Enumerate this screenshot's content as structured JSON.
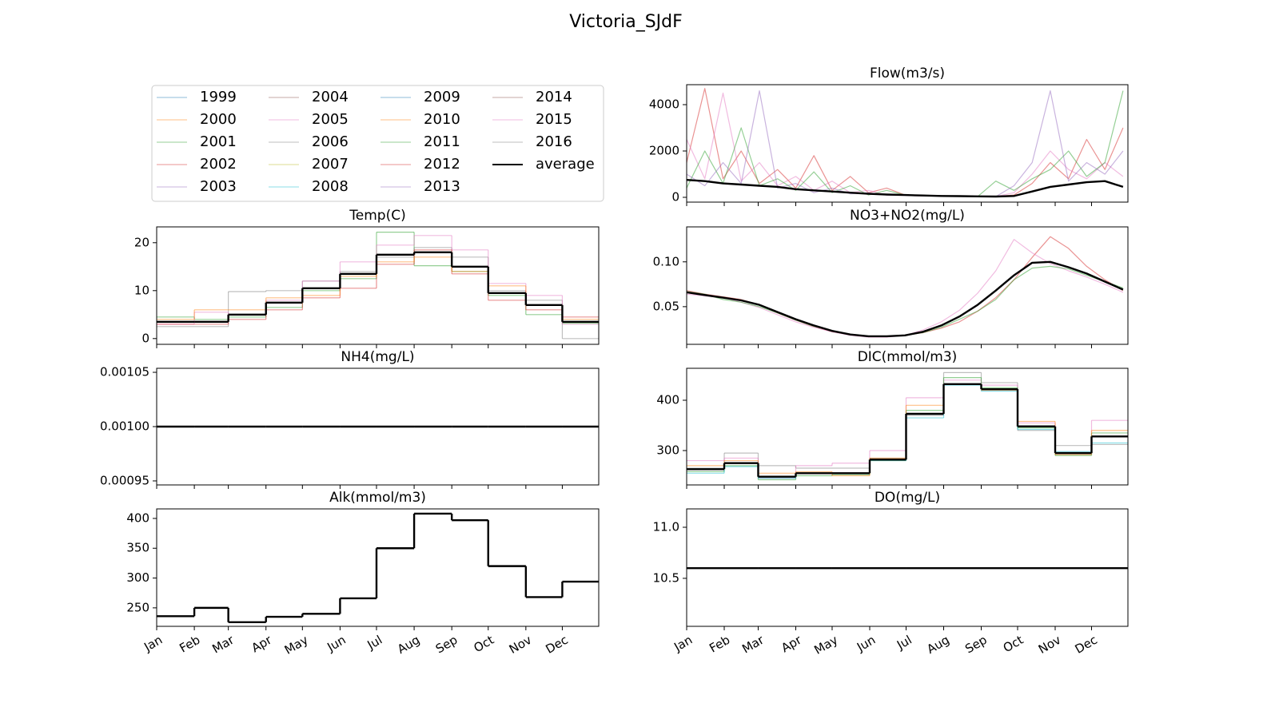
{
  "title": "Victoria_SJdF",
  "legend": {
    "ncol": 4,
    "entries": [
      {
        "name": "1999",
        "color": "#1f77b4"
      },
      {
        "name": "2000",
        "color": "#ff7f0e"
      },
      {
        "name": "2001",
        "color": "#2ca02c"
      },
      {
        "name": "2002",
        "color": "#d62728"
      },
      {
        "name": "2003",
        "color": "#9467bd"
      },
      {
        "name": "2004",
        "color": "#8c564b"
      },
      {
        "name": "2005",
        "color": "#e377c2"
      },
      {
        "name": "2006",
        "color": "#7f7f7f"
      },
      {
        "name": "2007",
        "color": "#bcbd22"
      },
      {
        "name": "2008",
        "color": "#17becf"
      },
      {
        "name": "2009",
        "color": "#1f77b4"
      },
      {
        "name": "2010",
        "color": "#ff7f0e"
      },
      {
        "name": "2011",
        "color": "#2ca02c"
      },
      {
        "name": "2012",
        "color": "#d62728"
      },
      {
        "name": "2013",
        "color": "#9467bd"
      },
      {
        "name": "2014",
        "color": "#8c564b"
      },
      {
        "name": "2015",
        "color": "#e377c2"
      },
      {
        "name": "2016",
        "color": "#7f7f7f"
      },
      {
        "name": "average",
        "color": "#000000"
      }
    ]
  },
  "chart_data": [
    {
      "type": "line",
      "title": "Flow(m3/s)",
      "drawstyle": "default",
      "xlim": [
        1,
        365
      ],
      "ylim": [
        -207,
        4862
      ],
      "yticks": [
        0,
        2000,
        4000
      ],
      "x": [
        1,
        16,
        31,
        46,
        61,
        76,
        91,
        106,
        121,
        136,
        151,
        166,
        181,
        196,
        211,
        226,
        241,
        256,
        271,
        286,
        301,
        316,
        331,
        346,
        361
      ],
      "series": [
        {
          "name": "2002",
          "color": "#d62728",
          "alpha": 0.5,
          "linewidth": 1,
          "values": [
            1500,
            4700,
            800,
            2000,
            600,
            1200,
            400,
            1800,
            300,
            900,
            200,
            400,
            100,
            80,
            60,
            50,
            40,
            30,
            100,
            600,
            1500,
            800,
            2500,
            1200,
            3000
          ]
        },
        {
          "name": "2005",
          "color": "#e377c2",
          "alpha": 0.5,
          "linewidth": 1,
          "values": [
            2500,
            800,
            4500,
            700,
            1500,
            500,
            900,
            300,
            700,
            200,
            300,
            100,
            80,
            60,
            50,
            40,
            40,
            30,
            200,
            1000,
            2000,
            1200,
            800,
            1500,
            900
          ]
        },
        {
          "name": "2001",
          "color": "#2ca02c",
          "alpha": 0.5,
          "linewidth": 1,
          "values": [
            400,
            2000,
            600,
            3000,
            500,
            800,
            300,
            1100,
            200,
            500,
            100,
            300,
            100,
            80,
            60,
            40,
            30,
            700,
            300,
            800,
            1200,
            2000,
            900,
            1500,
            4600
          ]
        },
        {
          "name": "2003",
          "color": "#9467bd",
          "alpha": 0.5,
          "linewidth": 1,
          "values": [
            1000,
            500,
            1500,
            600,
            4600,
            400,
            600,
            200,
            400,
            150,
            200,
            100,
            90,
            70,
            50,
            40,
            30,
            30,
            500,
            1500,
            4600,
            700,
            1500,
            1000,
            2000
          ]
        },
        {
          "name": "average",
          "color": "#000000",
          "alpha": 1,
          "linewidth": 2,
          "values": [
            750,
            700,
            600,
            550,
            500,
            450,
            350,
            300,
            250,
            200,
            150,
            120,
            100,
            80,
            60,
            50,
            40,
            35,
            60,
            250,
            450,
            550,
            650,
            700,
            450
          ]
        }
      ]
    },
    {
      "type": "line",
      "title": "Temp(C)",
      "drawstyle": "steps-post",
      "xlim": [
        1,
        365
      ],
      "ylim": [
        -1.2,
        23.3
      ],
      "yticks": [
        0,
        10,
        20
      ],
      "x": [
        1,
        32,
        60,
        91,
        121,
        152,
        182,
        213,
        244,
        274,
        305,
        335
      ],
      "series": [
        {
          "name": "2001",
          "color": "#2ca02c",
          "alpha": 0.5,
          "linewidth": 1,
          "values": [
            4.5,
            4,
            4.5,
            6.5,
            10,
            12.5,
            22.2,
            15.2,
            14,
            9,
            5,
            3.2
          ]
        },
        {
          "name": "2006",
          "color": "#7f7f7f",
          "alpha": 0.5,
          "linewidth": 1,
          "values": [
            2.5,
            2.5,
            9.8,
            10,
            12,
            14,
            17,
            19,
            17,
            10,
            8,
            0
          ]
        },
        {
          "name": "2005",
          "color": "#e377c2",
          "alpha": 0.5,
          "linewidth": 1,
          "values": [
            3,
            5.5,
            5,
            8,
            12,
            16,
            19.5,
            21.5,
            18.5,
            11.5,
            9,
            3
          ]
        },
        {
          "name": "2002",
          "color": "#d62728",
          "alpha": 0.5,
          "linewidth": 1,
          "values": [
            3,
            3,
            4,
            6,
            8.5,
            10.5,
            15.5,
            18.5,
            13.5,
            8,
            6,
            4.5
          ]
        },
        {
          "name": "2000",
          "color": "#ff7f0e",
          "alpha": 0.5,
          "linewidth": 1,
          "values": [
            4,
            6,
            6,
            8.5,
            9,
            13,
            16,
            17,
            14,
            11,
            7,
            4
          ]
        },
        {
          "name": "average",
          "color": "#000000",
          "alpha": 1,
          "linewidth": 2,
          "values": [
            3.5,
            3.5,
            5,
            7.5,
            10.5,
            13.5,
            17.5,
            18,
            15,
            9.5,
            7,
            3.5
          ]
        }
      ]
    },
    {
      "type": "line",
      "title": "NO3+NO2(mg/L)",
      "drawstyle": "default",
      "xlim": [
        1,
        365
      ],
      "ylim": [
        0.008,
        0.139
      ],
      "yticks": [
        0.05,
        {
          "value": 0.1,
          "label": "0.10"
        }
      ],
      "x": [
        1,
        16,
        31,
        46,
        61,
        76,
        91,
        106,
        121,
        136,
        151,
        166,
        181,
        196,
        211,
        226,
        241,
        256,
        271,
        286,
        301,
        316,
        331,
        346,
        361
      ],
      "series": [
        {
          "name": "2012",
          "color": "#d62728",
          "alpha": 0.5,
          "linewidth": 1,
          "values": [
            0.068,
            0.064,
            0.061,
            0.058,
            0.052,
            0.043,
            0.035,
            0.028,
            0.022,
            0.019,
            0.017,
            0.017,
            0.018,
            0.021,
            0.026,
            0.033,
            0.045,
            0.06,
            0.08,
            0.105,
            0.128,
            0.115,
            0.095,
            0.08,
            0.068
          ]
        },
        {
          "name": "2005",
          "color": "#e377c2",
          "alpha": 0.5,
          "linewidth": 1,
          "values": [
            0.064,
            0.062,
            0.06,
            0.055,
            0.049,
            0.041,
            0.033,
            0.027,
            0.022,
            0.018,
            0.016,
            0.016,
            0.018,
            0.024,
            0.033,
            0.046,
            0.065,
            0.09,
            0.125,
            0.11,
            0.098,
            0.09,
            0.083,
            0.075,
            0.066
          ]
        },
        {
          "name": "2001",
          "color": "#2ca02c",
          "alpha": 0.5,
          "linewidth": 1,
          "values": [
            0.067,
            0.064,
            0.058,
            0.055,
            0.05,
            0.043,
            0.035,
            0.028,
            0.023,
            0.019,
            0.017,
            0.017,
            0.018,
            0.021,
            0.027,
            0.036,
            0.045,
            0.058,
            0.08,
            0.093,
            0.095,
            0.092,
            0.085,
            0.078,
            0.071
          ]
        },
        {
          "name": "average",
          "color": "#000000",
          "alpha": 1,
          "linewidth": 2,
          "values": [
            0.066,
            0.063,
            0.06,
            0.057,
            0.052,
            0.044,
            0.036,
            0.029,
            0.023,
            0.019,
            0.017,
            0.017,
            0.018,
            0.022,
            0.029,
            0.039,
            0.052,
            0.068,
            0.085,
            0.099,
            0.1,
            0.094,
            0.087,
            0.078,
            0.069
          ]
        }
      ]
    },
    {
      "type": "line",
      "title": "NH4(mg/L)",
      "drawstyle": "steps-post",
      "xlim": [
        1,
        365
      ],
      "ylim": [
        0.0009463,
        0.0010537
      ],
      "yticks": [
        0.00095,
        {
          "value": 0.001,
          "label": "0.00100"
        },
        0.00105
      ],
      "x": [
        1,
        32,
        60,
        91,
        121,
        152,
        182,
        213,
        244,
        274,
        305,
        335
      ],
      "series": [
        {
          "name": "average",
          "color": "#000000",
          "alpha": 1,
          "linewidth": 2,
          "values": [
            0.001,
            0.001,
            0.001,
            0.001,
            0.001,
            0.001,
            0.001,
            0.001,
            0.001,
            0.001,
            0.001,
            0.001
          ]
        }
      ]
    },
    {
      "type": "line",
      "title": "DIC(mmol/m3)",
      "drawstyle": "steps-post",
      "xlim": [
        1,
        365
      ],
      "ylim": [
        231.7,
        463.5
      ],
      "yticks": [
        300,
        400
      ],
      "x": [
        1,
        32,
        60,
        91,
        121,
        152,
        182,
        213,
        244,
        274,
        305,
        335
      ],
      "series": [
        {
          "name": "2006",
          "color": "#7f7f7f",
          "alpha": 0.5,
          "linewidth": 1,
          "values": [
            265,
            295,
            270,
            265,
            265,
            285,
            370,
            455,
            435,
            340,
            310,
            312
          ]
        },
        {
          "name": "2005",
          "color": "#e377c2",
          "alpha": 0.5,
          "linewidth": 1,
          "values": [
            280,
            285,
            245,
            270,
            275,
            300,
            405,
            440,
            430,
            355,
            295,
            360
          ]
        },
        {
          "name": "2011",
          "color": "#2ca02c",
          "alpha": 0.5,
          "linewidth": 1,
          "values": [
            258,
            270,
            242,
            250,
            252,
            280,
            380,
            445,
            425,
            345,
            290,
            335
          ]
        },
        {
          "name": "2008",
          "color": "#17becf",
          "alpha": 0.5,
          "linewidth": 1,
          "values": [
            255,
            268,
            245,
            255,
            255,
            280,
            365,
            430,
            418,
            342,
            298,
            315
          ]
        },
        {
          "name": "2010",
          "color": "#ff7f0e",
          "alpha": 0.5,
          "linewidth": 1,
          "values": [
            270,
            280,
            255,
            258,
            250,
            285,
            390,
            432,
            420,
            358,
            292,
            340
          ]
        },
        {
          "name": "average",
          "color": "#000000",
          "alpha": 1,
          "linewidth": 2,
          "values": [
            263,
            275,
            248,
            255,
            255,
            282,
            373,
            432,
            422,
            348,
            295,
            328
          ]
        }
      ]
    },
    {
      "type": "line",
      "title": "Alk(mmol/m3)",
      "drawstyle": "steps-post",
      "xlim": [
        1,
        365
      ],
      "ylim": [
        219,
        416
      ],
      "yticks": [
        250,
        300,
        350,
        400
      ],
      "xticks": [
        {
          "value": 1,
          "label": "Jan"
        },
        {
          "value": 32,
          "label": "Feb"
        },
        {
          "value": 60,
          "label": "Mar"
        },
        {
          "value": 91,
          "label": "Apr"
        },
        {
          "value": 121,
          "label": "May"
        },
        {
          "value": 152,
          "label": "Jun"
        },
        {
          "value": 182,
          "label": "Jul"
        },
        {
          "value": 213,
          "label": "Aug"
        },
        {
          "value": 244,
          "label": "Sep"
        },
        {
          "value": 274,
          "label": "Oct"
        },
        {
          "value": 305,
          "label": "Nov"
        },
        {
          "value": 335,
          "label": "Dec"
        }
      ],
      "x": [
        1,
        32,
        60,
        91,
        121,
        152,
        182,
        213,
        244,
        274,
        305,
        335
      ],
      "series": [
        {
          "name": "average",
          "color": "#000000",
          "alpha": 1,
          "linewidth": 2,
          "values": [
            236,
            250,
            226,
            235,
            240,
            266,
            350,
            408,
            397,
            320,
            268,
            294
          ]
        }
      ]
    },
    {
      "type": "line",
      "title": "DO(mg/L)",
      "drawstyle": "steps-post",
      "xlim": [
        1,
        365
      ],
      "ylim": [
        10.03,
        11.18
      ],
      "yticks": [
        10.5,
        {
          "value": 11,
          "label": "11.0"
        }
      ],
      "xticks": [
        {
          "value": 1,
          "label": "Jan"
        },
        {
          "value": 32,
          "label": "Feb"
        },
        {
          "value": 60,
          "label": "Mar"
        },
        {
          "value": 91,
          "label": "Apr"
        },
        {
          "value": 121,
          "label": "May"
        },
        {
          "value": 152,
          "label": "Jun"
        },
        {
          "value": 182,
          "label": "Jul"
        },
        {
          "value": 213,
          "label": "Aug"
        },
        {
          "value": 244,
          "label": "Sep"
        },
        {
          "value": 274,
          "label": "Oct"
        },
        {
          "value": 305,
          "label": "Nov"
        },
        {
          "value": 335,
          "label": "Dec"
        }
      ],
      "x": [
        1,
        32,
        60,
        91,
        121,
        152,
        182,
        213,
        244,
        274,
        305,
        335
      ],
      "series": [
        {
          "name": "average",
          "color": "#000000",
          "alpha": 1,
          "linewidth": 2,
          "values": [
            10.6,
            10.6,
            10.6,
            10.6,
            10.6,
            10.6,
            10.6,
            10.6,
            10.6,
            10.6,
            10.6,
            10.6
          ]
        }
      ]
    }
  ]
}
